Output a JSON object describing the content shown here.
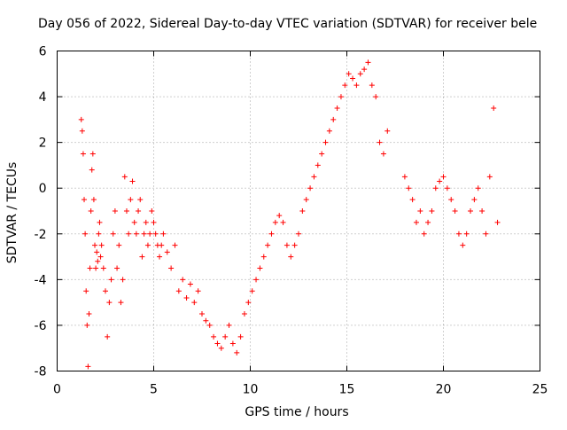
{
  "chart_data": {
    "type": "scatter",
    "title": "Day 056 of 2022, Sidereal Day-to-day VTEC variation (SDTVAR) for receiver bele",
    "xlabel": "GPS time / hours",
    "ylabel": "SDTVAR / TECUs",
    "xlim": [
      0,
      25
    ],
    "ylim": [
      -8,
      6
    ],
    "xticks": [
      0,
      5,
      10,
      15,
      20,
      25
    ],
    "yticks": [
      -8,
      -6,
      -4,
      -2,
      0,
      2,
      4,
      6
    ],
    "xtick_labels": [
      "0",
      "5",
      "10",
      "15",
      "20",
      "25"
    ],
    "ytick_labels": [
      "-8",
      "-6",
      "-4",
      "-2",
      "0",
      "2",
      "4",
      "6"
    ],
    "grid": true,
    "marker": "+",
    "color": "#ff0000",
    "series": [
      {
        "name": "SDTVAR",
        "x": [
          1.25,
          1.3,
          1.35,
          1.4,
          1.45,
          1.5,
          1.55,
          1.6,
          1.65,
          1.7,
          1.75,
          1.8,
          1.85,
          1.9,
          1.95,
          2.0,
          2.05,
          2.1,
          2.15,
          2.2,
          2.25,
          2.3,
          2.4,
          2.5,
          2.6,
          2.7,
          2.8,
          2.9,
          3.0,
          3.1,
          3.2,
          3.3,
          3.4,
          3.5,
          3.6,
          3.7,
          3.8,
          3.9,
          4.0,
          4.1,
          4.2,
          4.3,
          4.4,
          4.5,
          4.6,
          4.7,
          4.8,
          4.9,
          5.0,
          5.1,
          5.2,
          5.3,
          5.4,
          5.5,
          5.7,
          5.9,
          6.1,
          6.3,
          6.5,
          6.7,
          6.9,
          7.1,
          7.3,
          7.5,
          7.7,
          7.9,
          8.1,
          8.3,
          8.5,
          8.7,
          8.9,
          9.1,
          9.3,
          9.5,
          9.7,
          9.9,
          10.1,
          10.3,
          10.5,
          10.7,
          10.9,
          11.1,
          11.3,
          11.5,
          11.7,
          11.9,
          12.1,
          12.3,
          12.5,
          12.7,
          12.9,
          13.1,
          13.3,
          13.5,
          13.7,
          13.9,
          14.1,
          14.3,
          14.5,
          14.7,
          14.9,
          15.1,
          15.3,
          15.5,
          15.7,
          15.9,
          16.1,
          16.3,
          16.5,
          16.7,
          16.9,
          17.1,
          18.0,
          18.2,
          18.4,
          18.6,
          18.8,
          19.0,
          19.2,
          19.4,
          19.6,
          19.8,
          20.0,
          20.2,
          20.4,
          20.6,
          20.8,
          21.0,
          21.2,
          21.4,
          21.6,
          21.8,
          22.0,
          22.2,
          22.4,
          22.6,
          22.8
        ],
        "y": [
          3.0,
          2.5,
          1.5,
          -0.5,
          -2.0,
          -4.5,
          -6.0,
          -7.8,
          -5.5,
          -3.5,
          -1.0,
          0.8,
          1.5,
          -0.5,
          -2.5,
          -3.5,
          -2.8,
          -3.2,
          -2.0,
          -1.5,
          -3.0,
          -2.5,
          -3.5,
          -4.5,
          -6.5,
          -5.0,
          -4.0,
          -2.0,
          -1.0,
          -3.5,
          -2.5,
          -5.0,
          -4.0,
          0.5,
          -1.0,
          -2.0,
          -0.5,
          0.3,
          -1.5,
          -2.0,
          -1.0,
          -0.5,
          -3.0,
          -2.0,
          -1.5,
          -2.5,
          -2.0,
          -1.0,
          -1.5,
          -2.0,
          -2.5,
          -3.0,
          -2.5,
          -2.0,
          -2.8,
          -3.5,
          -2.5,
          -4.5,
          -4.0,
          -4.8,
          -4.2,
          -5.0,
          -4.5,
          -5.5,
          -5.8,
          -6.0,
          -6.5,
          -6.8,
          -7.0,
          -6.5,
          -6.0,
          -6.8,
          -7.2,
          -6.5,
          -5.5,
          -5.0,
          -4.5,
          -4.0,
          -3.5,
          -3.0,
          -2.5,
          -2.0,
          -1.5,
          -1.2,
          -1.5,
          -2.5,
          -3.0,
          -2.5,
          -2.0,
          -1.0,
          -0.5,
          0.0,
          0.5,
          1.0,
          1.5,
          2.0,
          2.5,
          3.0,
          3.5,
          4.0,
          4.5,
          5.0,
          4.8,
          4.5,
          5.0,
          5.2,
          5.5,
          4.5,
          4.0,
          2.0,
          1.5,
          2.5,
          0.5,
          0.0,
          -0.5,
          -1.5,
          -1.0,
          -2.0,
          -1.5,
          -1.0,
          0.0,
          0.3,
          0.5,
          0.0,
          -0.5,
          -1.0,
          -2.0,
          -2.5,
          -2.0,
          -1.0,
          -0.5,
          0.0,
          -1.0,
          -2.0,
          0.5,
          3.5,
          -1.5
        ]
      }
    ]
  }
}
